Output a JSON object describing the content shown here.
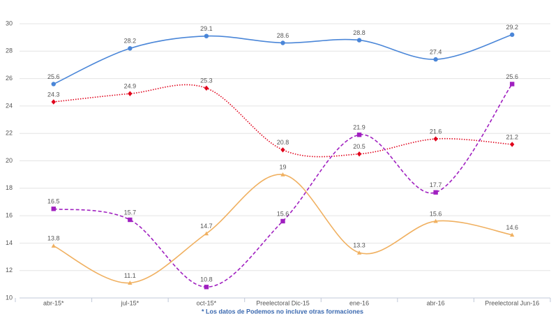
{
  "chart_data": {
    "type": "line",
    "categories": [
      "abr-15*",
      "jul-15*",
      "oct-15*",
      "Preelectoral Dic-15",
      "ene-16",
      "abr-16",
      "Preelectoral Jun-16"
    ],
    "series": [
      {
        "color": "#4a86d8",
        "line_style": "solid",
        "marker": "circle",
        "values": [
          25.6,
          28.2,
          29.1,
          28.6,
          28.8,
          27.4,
          29.2
        ]
      },
      {
        "color": "#e0001a",
        "line_style": "dotted",
        "marker": "diamond",
        "values": [
          24.3,
          24.9,
          25.3,
          20.8,
          20.5,
          21.6,
          21.2
        ]
      },
      {
        "color": "#a020c0",
        "line_style": "dashed",
        "marker": "square",
        "values": [
          16.5,
          15.7,
          10.8,
          15.6,
          21.9,
          17.7,
          25.6
        ]
      },
      {
        "color": "#f0b060",
        "line_style": "solid",
        "marker": "triangle",
        "values": [
          13.8,
          11.1,
          14.7,
          19,
          13.3,
          15.6,
          14.6
        ]
      }
    ],
    "ylim": [
      10,
      30
    ],
    "yticks": [
      10,
      12,
      14,
      16,
      18,
      20,
      22,
      24,
      26,
      28,
      30
    ],
    "grid": true,
    "note": "* Los datos de Podemos no incluye otras formaciones"
  }
}
